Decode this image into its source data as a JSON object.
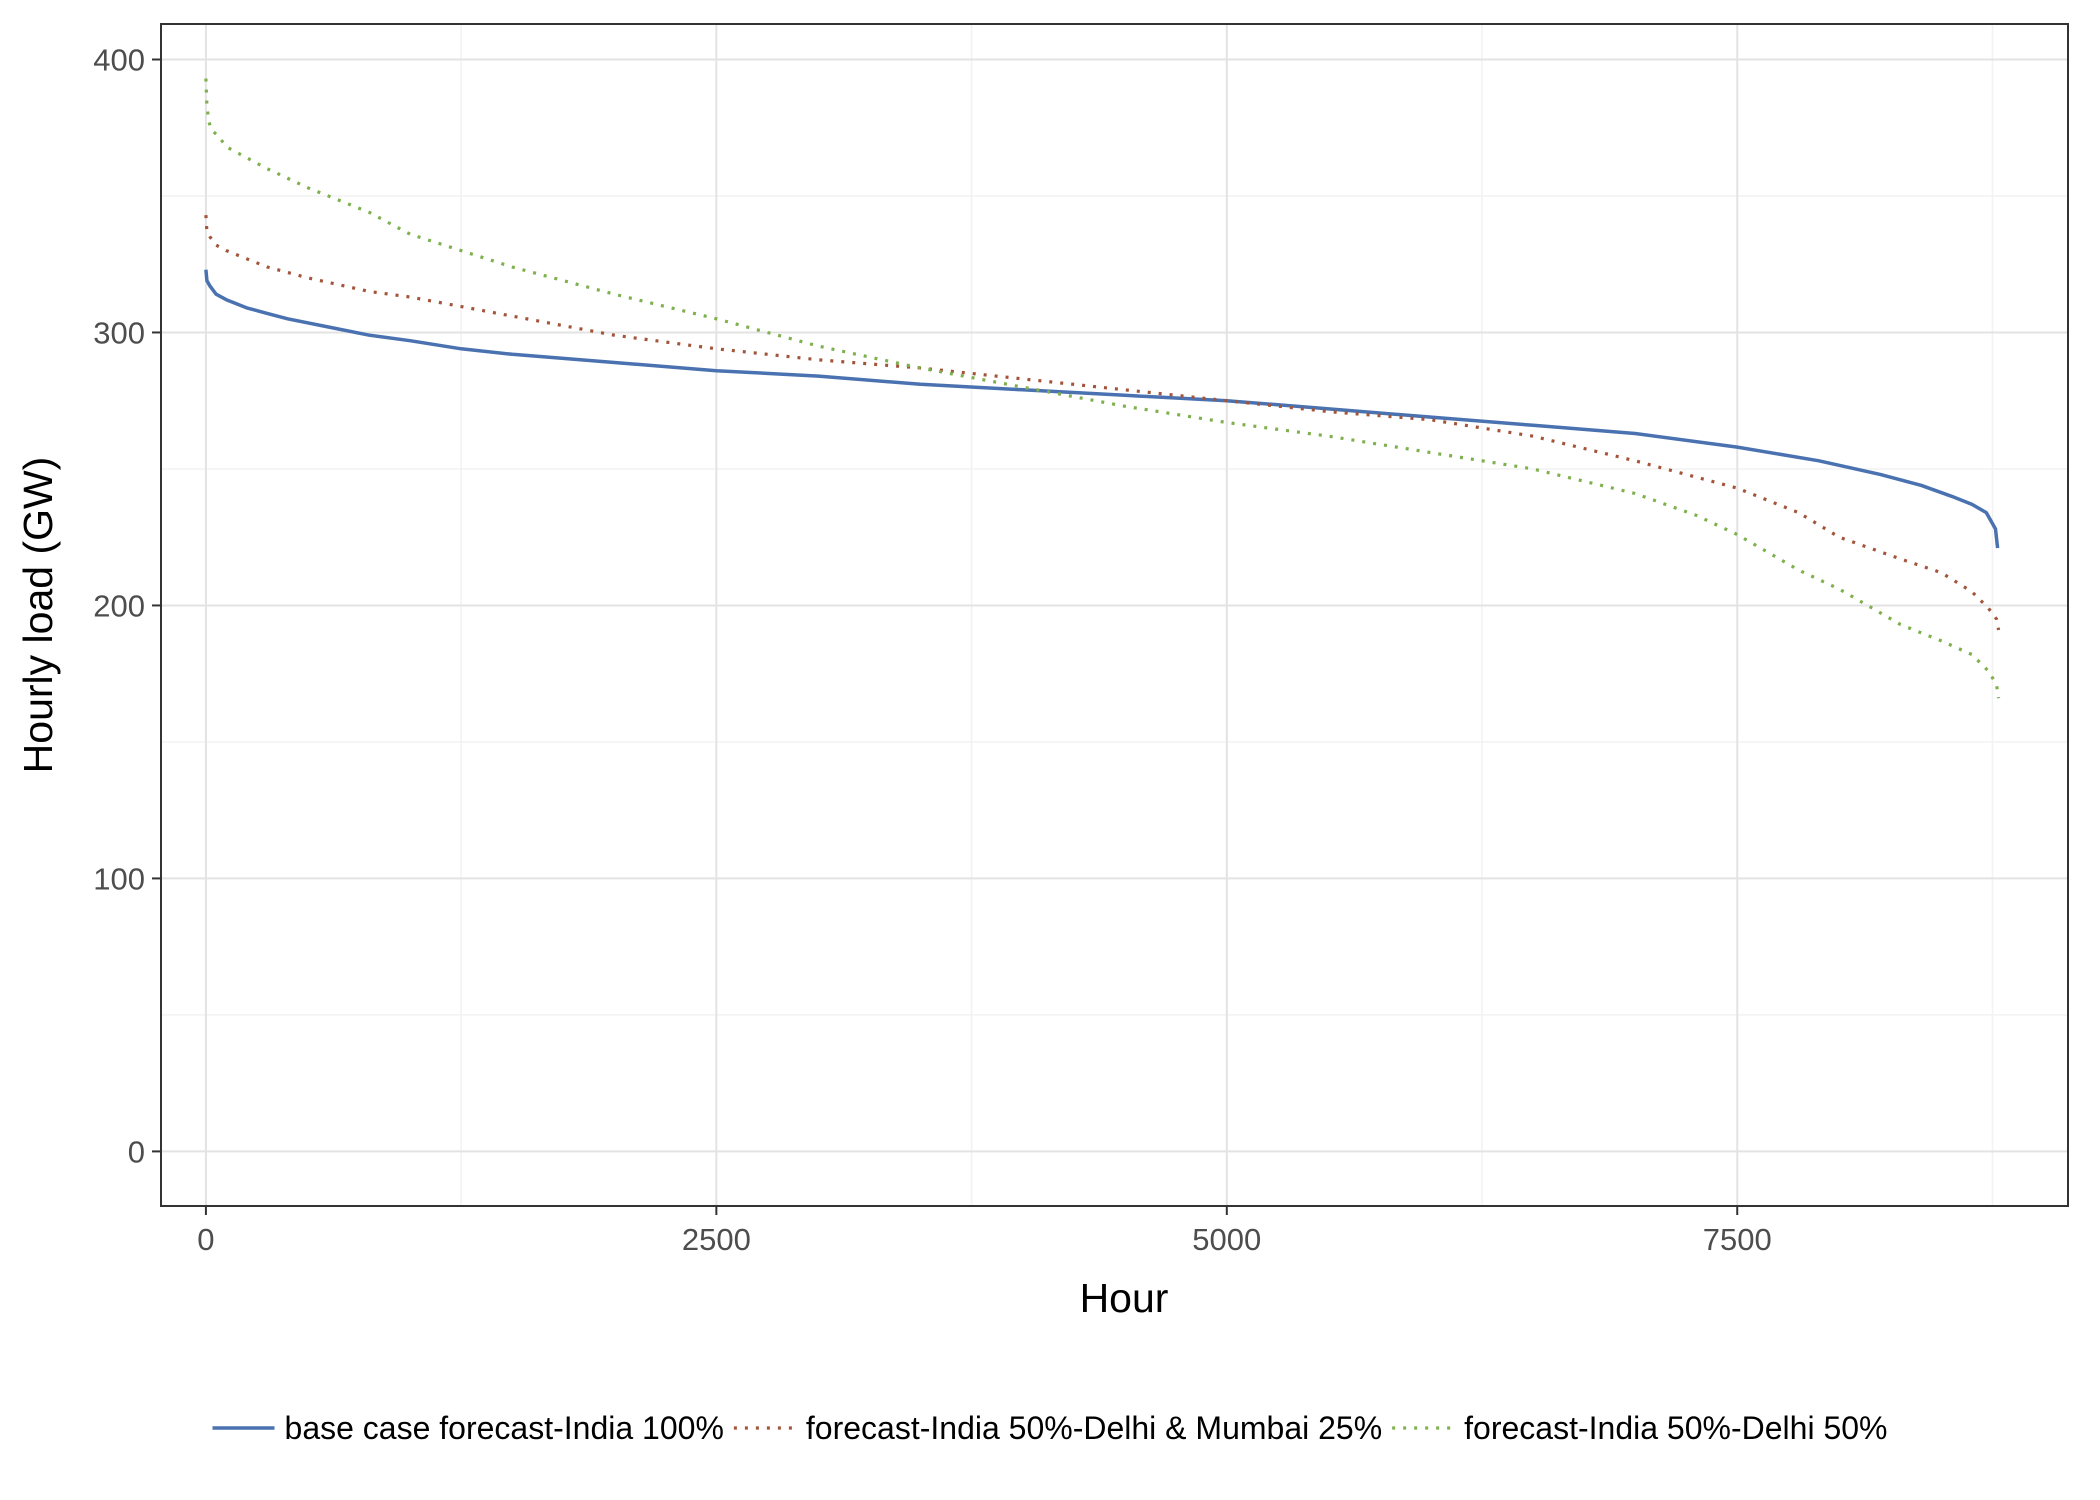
{
  "chart_data": {
    "type": "line",
    "title": "",
    "xlabel": "Hour",
    "ylabel": "Hourly load (GW)",
    "xlim": [
      -220,
      9120
    ],
    "ylim": [
      -20,
      413
    ],
    "x_ticks": [
      0,
      2500,
      5000,
      7500
    ],
    "x_tick_labels": [
      "0",
      "2500",
      "5000",
      "7500"
    ],
    "y_ticks": [
      0,
      100,
      200,
      300,
      400
    ],
    "y_tick_labels": [
      "0",
      "100",
      "200",
      "300",
      "400"
    ],
    "x_minor_ticks": [
      1250,
      3750,
      6250,
      8750
    ],
    "y_minor_ticks": [
      50,
      150,
      250,
      350
    ],
    "grid": true,
    "legend_position": "bottom",
    "series": [
      {
        "name": "base case forecast-India 100%",
        "color": "#4a72b0",
        "line_style": "solid",
        "x": [
          0,
          5,
          20,
          50,
          100,
          200,
          300,
          400,
          600,
          800,
          1000,
          1250,
          1500,
          2000,
          2500,
          3000,
          3500,
          4000,
          4500,
          5000,
          5500,
          6000,
          6500,
          7000,
          7500,
          7900,
          8200,
          8400,
          8550,
          8650,
          8720,
          8750,
          8765,
          8775
        ],
        "y": [
          323,
          319,
          317,
          314,
          312,
          309,
          307,
          305,
          302,
          299,
          297,
          294,
          292,
          289,
          286,
          284,
          281,
          279,
          277,
          275,
          272,
          269,
          266,
          263,
          258,
          253,
          248,
          244,
          240,
          237,
          234,
          230,
          228,
          221
        ]
      },
      {
        "name": "forecast-India 50%-Delhi & Mumbai 25%",
        "color": "#a2553a",
        "line_style": "dotted",
        "x": [
          0,
          5,
          20,
          50,
          100,
          200,
          300,
          500,
          800,
          1000,
          1500,
          2000,
          2500,
          3000,
          3500,
          4000,
          4500,
          5000,
          5500,
          6000,
          6500,
          7000,
          7500,
          7800,
          8000,
          8300,
          8500,
          8650,
          8730,
          8770,
          8780
        ],
        "y": [
          343,
          337,
          335,
          332,
          330,
          327,
          324,
          320,
          315,
          313,
          306,
          299,
          294,
          290,
          287,
          283,
          279,
          275,
          271,
          268,
          262,
          253,
          243,
          234,
          225,
          217,
          212,
          205,
          199,
          195,
          191
        ]
      },
      {
        "name": "forecast-India 50%-Delhi 50%",
        "color": "#7fb04e",
        "line_style": "dotted",
        "x": [
          0,
          5,
          15,
          30,
          60,
          100,
          200,
          300,
          500,
          800,
          1000,
          1500,
          2000,
          2500,
          3000,
          3500,
          4000,
          4500,
          5000,
          5500,
          6000,
          6500,
          7000,
          7300,
          7500,
          7800,
          8000,
          8300,
          8500,
          8650,
          8730,
          8770,
          8780
        ],
        "y": [
          393,
          383,
          377,
          374,
          372,
          368,
          364,
          360,
          353,
          344,
          336,
          324,
          314,
          305,
          295,
          287,
          280,
          273,
          267,
          262,
          256,
          250,
          241,
          233,
          226,
          213,
          206,
          193,
          187,
          182,
          176,
          171,
          166
        ]
      }
    ]
  }
}
